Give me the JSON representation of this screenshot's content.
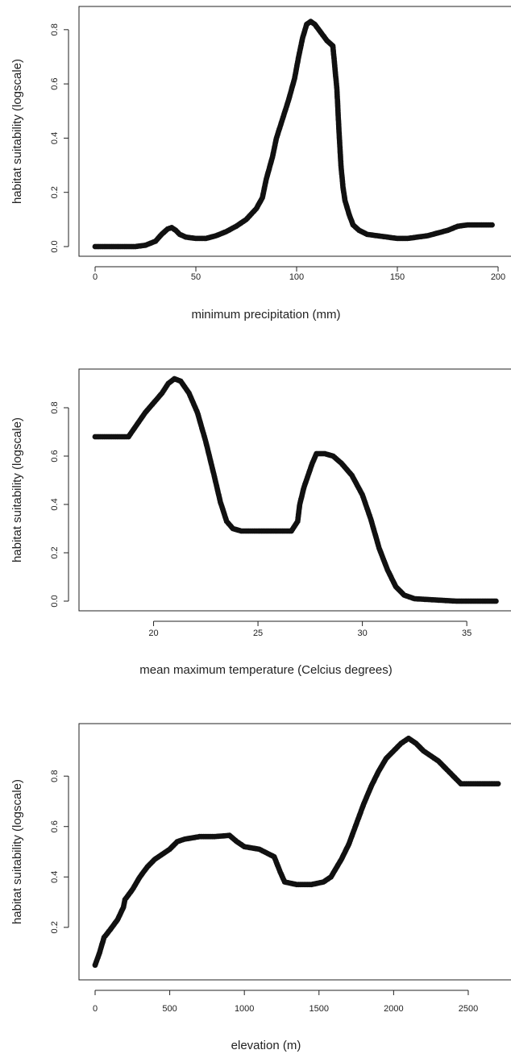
{
  "chart_data": [
    {
      "type": "scatter",
      "xlabel": "minimum precipitation (mm)",
      "ylabel": "habitat suitability (logscale)",
      "xlim": [
        0,
        200
      ],
      "ylim": [
        0,
        0.85
      ],
      "xticks": [
        0,
        50,
        100,
        150,
        200
      ],
      "yticks": [
        0.0,
        0.2,
        0.4,
        0.6,
        0.8
      ],
      "xtick_labels": [
        "0",
        "50",
        "100",
        "150",
        "200"
      ],
      "ytick_labels": [
        "0.0",
        "0.2",
        "0.4",
        "0.6",
        "0.8"
      ],
      "grid": false,
      "series": [
        {
          "color": "#111111",
          "points": [
            [
              0,
              0.0
            ],
            [
              10,
              0.0
            ],
            [
              20,
              0.0
            ],
            [
              25,
              0.005
            ],
            [
              30,
              0.02
            ],
            [
              33,
              0.045
            ],
            [
              36,
              0.065
            ],
            [
              38,
              0.07
            ],
            [
              40,
              0.06
            ],
            [
              42,
              0.045
            ],
            [
              45,
              0.035
            ],
            [
              50,
              0.03
            ],
            [
              55,
              0.03
            ],
            [
              60,
              0.04
            ],
            [
              65,
              0.055
            ],
            [
              70,
              0.075
            ],
            [
              75,
              0.1
            ],
            [
              80,
              0.14
            ],
            [
              83,
              0.18
            ],
            [
              85,
              0.25
            ],
            [
              88,
              0.33
            ],
            [
              90,
              0.4
            ],
            [
              93,
              0.47
            ],
            [
              96,
              0.54
            ],
            [
              99,
              0.62
            ],
            [
              101,
              0.7
            ],
            [
              103,
              0.77
            ],
            [
              105,
              0.82
            ],
            [
              107,
              0.83
            ],
            [
              109,
              0.82
            ],
            [
              112,
              0.79
            ],
            [
              115,
              0.76
            ],
            [
              118,
              0.74
            ],
            [
              119,
              0.66
            ],
            [
              120,
              0.58
            ],
            [
              121,
              0.43
            ],
            [
              122,
              0.3
            ],
            [
              123,
              0.22
            ],
            [
              124,
              0.17
            ],
            [
              126,
              0.12
            ],
            [
              128,
              0.08
            ],
            [
              131,
              0.06
            ],
            [
              135,
              0.045
            ],
            [
              140,
              0.04
            ],
            [
              145,
              0.035
            ],
            [
              150,
              0.03
            ],
            [
              155,
              0.03
            ],
            [
              160,
              0.035
            ],
            [
              165,
              0.04
            ],
            [
              170,
              0.05
            ],
            [
              175,
              0.06
            ],
            [
              180,
              0.075
            ],
            [
              185,
              0.08
            ],
            [
              190,
              0.08
            ],
            [
              197,
              0.08
            ]
          ]
        }
      ]
    },
    {
      "type": "scatter",
      "xlabel": "mean maximum temperature (Celcius degrees)",
      "ylabel": "habitat suitability (logscale)",
      "xlim": [
        17.2,
        36.5
      ],
      "ylim": [
        0,
        0.92
      ],
      "xticks": [
        20,
        25,
        30,
        35
      ],
      "yticks": [
        0.0,
        0.2,
        0.4,
        0.6,
        0.8
      ],
      "xtick_labels": [
        "20",
        "25",
        "30",
        "35"
      ],
      "ytick_labels": [
        "0.0",
        "0.2",
        "0.4",
        "0.6",
        "0.8"
      ],
      "grid": false,
      "series": [
        {
          "color": "#111111",
          "points": [
            [
              17.2,
              0.68
            ],
            [
              18.0,
              0.68
            ],
            [
              18.8,
              0.68
            ],
            [
              19.2,
              0.73
            ],
            [
              19.6,
              0.78
            ],
            [
              20.0,
              0.82
            ],
            [
              20.4,
              0.86
            ],
            [
              20.7,
              0.9
            ],
            [
              21.0,
              0.92
            ],
            [
              21.3,
              0.91
            ],
            [
              21.7,
              0.86
            ],
            [
              22.1,
              0.78
            ],
            [
              22.5,
              0.66
            ],
            [
              22.9,
              0.52
            ],
            [
              23.2,
              0.41
            ],
            [
              23.5,
              0.33
            ],
            [
              23.8,
              0.3
            ],
            [
              24.2,
              0.29
            ],
            [
              25.0,
              0.29
            ],
            [
              26.0,
              0.29
            ],
            [
              26.6,
              0.29
            ],
            [
              26.9,
              0.33
            ],
            [
              27.0,
              0.4
            ],
            [
              27.2,
              0.47
            ],
            [
              27.4,
              0.52
            ],
            [
              27.6,
              0.57
            ],
            [
              27.8,
              0.61
            ],
            [
              28.2,
              0.61
            ],
            [
              28.6,
              0.6
            ],
            [
              29.0,
              0.57
            ],
            [
              29.5,
              0.52
            ],
            [
              30.0,
              0.44
            ],
            [
              30.4,
              0.34
            ],
            [
              30.8,
              0.22
            ],
            [
              31.2,
              0.13
            ],
            [
              31.6,
              0.06
            ],
            [
              32.0,
              0.025
            ],
            [
              32.5,
              0.01
            ],
            [
              33.5,
              0.005
            ],
            [
              34.5,
              0.0
            ],
            [
              35.5,
              0.0
            ],
            [
              36.4,
              0.0
            ]
          ]
        }
      ]
    },
    {
      "type": "scatter",
      "xlabel": "elevation (m)",
      "ylabel": "habitat suitability (logscale)",
      "xlim": [
        0,
        2700
      ],
      "ylim": [
        0.03,
        0.97
      ],
      "xticks": [
        0,
        500,
        1000,
        1500,
        2000,
        2500
      ],
      "yticks": [
        0.2,
        0.4,
        0.6,
        0.8
      ],
      "xtick_labels": [
        "0",
        "500",
        "1000",
        "1500",
        "2000",
        "2500"
      ],
      "ytick_labels": [
        "0.2",
        "0.4",
        "0.6",
        "0.8"
      ],
      "grid": false,
      "series": [
        {
          "color": "#111111",
          "points": [
            [
              0,
              0.05
            ],
            [
              30,
              0.1
            ],
            [
              60,
              0.16
            ],
            [
              100,
              0.19
            ],
            [
              150,
              0.23
            ],
            [
              190,
              0.28
            ],
            [
              200,
              0.31
            ],
            [
              250,
              0.35
            ],
            [
              300,
              0.4
            ],
            [
              350,
              0.44
            ],
            [
              400,
              0.47
            ],
            [
              450,
              0.49
            ],
            [
              500,
              0.51
            ],
            [
              550,
              0.54
            ],
            [
              600,
              0.55
            ],
            [
              700,
              0.56
            ],
            [
              800,
              0.56
            ],
            [
              900,
              0.565
            ],
            [
              950,
              0.54
            ],
            [
              1000,
              0.52
            ],
            [
              1100,
              0.51
            ],
            [
              1200,
              0.48
            ],
            [
              1240,
              0.42
            ],
            [
              1270,
              0.38
            ],
            [
              1350,
              0.37
            ],
            [
              1450,
              0.37
            ],
            [
              1530,
              0.38
            ],
            [
              1580,
              0.4
            ],
            [
              1650,
              0.47
            ],
            [
              1700,
              0.53
            ],
            [
              1750,
              0.61
            ],
            [
              1800,
              0.69
            ],
            [
              1850,
              0.76
            ],
            [
              1900,
              0.82
            ],
            [
              1950,
              0.87
            ],
            [
              2000,
              0.9
            ],
            [
              2050,
              0.93
            ],
            [
              2100,
              0.95
            ],
            [
              2150,
              0.93
            ],
            [
              2200,
              0.9
            ],
            [
              2250,
              0.88
            ],
            [
              2300,
              0.86
            ],
            [
              2350,
              0.83
            ],
            [
              2400,
              0.8
            ],
            [
              2450,
              0.77
            ],
            [
              2550,
              0.77
            ],
            [
              2700,
              0.77
            ]
          ]
        }
      ]
    }
  ]
}
